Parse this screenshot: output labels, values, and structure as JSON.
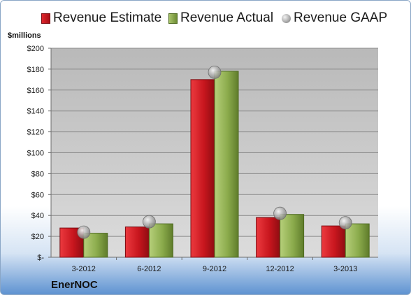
{
  "chart_data": {
    "type": "bar",
    "categories": [
      "3-2012",
      "6-2012",
      "9-2012",
      "12-2012",
      "3-2013"
    ],
    "series": [
      {
        "name": "Revenue Estimate",
        "values": [
          28,
          29,
          170,
          38,
          30
        ],
        "color": "#c8161e",
        "kind": "bar"
      },
      {
        "name": "Revenue Actual",
        "values": [
          23,
          32,
          178,
          41,
          32
        ],
        "color": "#8bab4c",
        "kind": "bar"
      },
      {
        "name": "Revenue GAAP",
        "values": [
          24,
          34,
          177,
          42,
          33
        ],
        "color": "#a6a6a6",
        "kind": "marker"
      }
    ],
    "ylabel": "$millions",
    "ylim": [
      0,
      200
    ],
    "yticks": [
      0,
      20,
      40,
      60,
      80,
      100,
      120,
      140,
      160,
      180,
      200
    ],
    "ytick_labels": [
      "$-",
      "$20",
      "$40",
      "$60",
      "$80",
      "$100",
      "$120",
      "$140",
      "$160",
      "$180",
      "$200"
    ],
    "grid": true,
    "legend_position": "top",
    "brand": "EnerNOC"
  }
}
